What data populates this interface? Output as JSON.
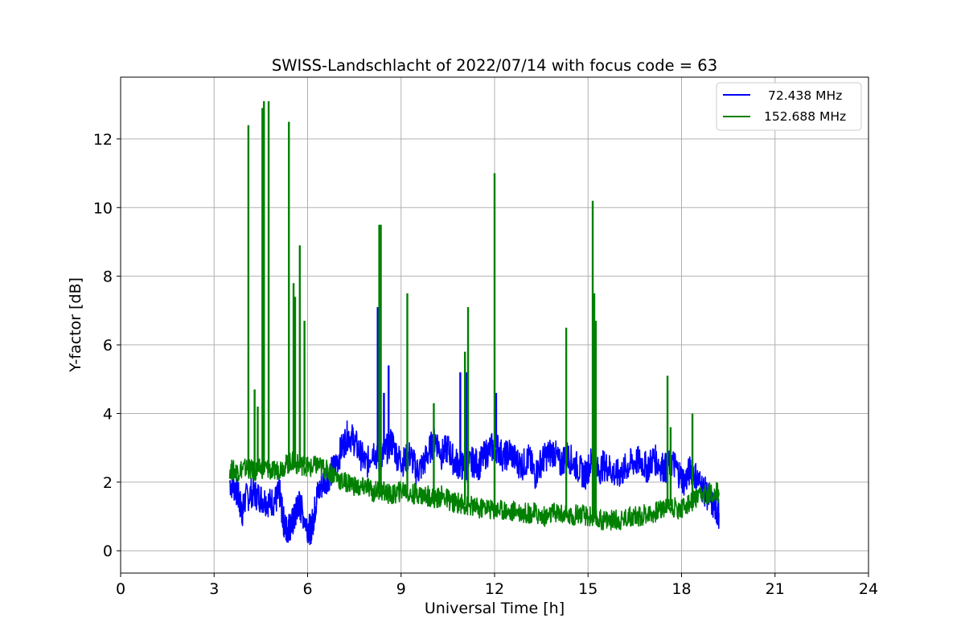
{
  "chart_data": {
    "type": "line",
    "title": "SWISS-Landschlacht of 2022/07/14 with focus code = 63",
    "xlabel": "Universal Time [h]",
    "ylabel": "Y-factor [dB]",
    "xlim": [
      0,
      24
    ],
    "ylim": [
      -0.65,
      13.8
    ],
    "xticks": [
      0,
      3,
      6,
      9,
      12,
      15,
      18,
      21,
      24
    ],
    "xtick_labels": [
      "0",
      "3",
      "6",
      "9",
      "12",
      "15",
      "18",
      "21",
      "24"
    ],
    "yticks": [
      0,
      2,
      4,
      6,
      8,
      10,
      12
    ],
    "ytick_labels": [
      "0",
      "2",
      "4",
      "6",
      "8",
      "10",
      "12"
    ],
    "grid": true,
    "legend_position": "top-right",
    "series": [
      {
        "name": "72.438 MHz",
        "color": "#0000ff",
        "x": [
          3.5,
          3.7,
          3.8,
          3.9,
          4.0,
          4.2,
          4.4,
          4.6,
          4.8,
          5.0,
          5.1,
          5.2,
          5.3,
          5.4,
          5.5,
          5.6,
          5.7,
          5.8,
          6.0,
          6.1,
          6.2,
          6.3,
          6.5,
          6.7,
          6.9,
          7.1,
          7.3,
          7.5,
          7.7,
          7.9,
          8.1,
          8.3,
          8.5,
          8.7,
          8.9,
          9.1,
          9.3,
          9.5,
          9.7,
          9.9,
          10.1,
          10.3,
          10.5,
          10.7,
          10.9,
          11.1,
          11.3,
          11.5,
          11.7,
          11.9,
          12.1,
          12.3,
          12.5,
          12.7,
          12.9,
          13.1,
          13.3,
          13.5,
          13.7,
          13.9,
          14.1,
          14.3,
          14.5,
          14.7,
          14.9,
          15.1,
          15.3,
          15.5,
          15.7,
          15.9,
          16.1,
          16.3,
          16.5,
          16.7,
          16.9,
          17.1,
          17.3,
          17.5,
          17.7,
          17.9,
          18.1,
          18.3,
          18.5,
          18.7,
          18.9,
          19.1,
          19.2
        ],
        "y": [
          2.0,
          1.8,
          1.5,
          1.1,
          1.5,
          1.7,
          1.6,
          1.5,
          1.4,
          1.5,
          1.7,
          1.0,
          0.6,
          0.7,
          0.8,
          1.0,
          1.4,
          1.2,
          0.7,
          0.6,
          1.0,
          1.6,
          2.0,
          2.2,
          2.5,
          3.0,
          3.4,
          3.2,
          2.8,
          2.5,
          3.0,
          2.6,
          2.9,
          3.2,
          2.7,
          2.6,
          2.8,
          2.3,
          2.5,
          2.9,
          3.3,
          2.8,
          3.0,
          2.6,
          2.5,
          2.4,
          2.6,
          2.5,
          2.8,
          3.0,
          3.0,
          2.7,
          2.9,
          2.6,
          2.5,
          2.7,
          2.2,
          2.6,
          2.8,
          2.9,
          2.5,
          2.8,
          2.6,
          2.4,
          2.2,
          2.6,
          2.3,
          2.5,
          2.4,
          2.2,
          2.3,
          2.5,
          2.6,
          2.6,
          2.4,
          2.7,
          2.5,
          2.4,
          2.6,
          2.3,
          2.0,
          2.4,
          2.1,
          1.8,
          1.5,
          1.2,
          1.1
        ],
        "spikes": [
          {
            "x": 8.25,
            "y": 7.1
          },
          {
            "x": 8.45,
            "y": 4.6
          },
          {
            "x": 8.6,
            "y": 5.4
          },
          {
            "x": 10.9,
            "y": 5.2
          },
          {
            "x": 11.05,
            "y": 5.1
          },
          {
            "x": 11.1,
            "y": 5.2
          },
          {
            "x": 12.05,
            "y": 4.6
          }
        ]
      },
      {
        "name": "152.688 MHz",
        "color": "#008000",
        "x": [
          3.5,
          3.7,
          3.9,
          4.1,
          4.3,
          4.5,
          4.7,
          4.9,
          5.1,
          5.3,
          5.5,
          5.7,
          5.9,
          6.1,
          6.3,
          6.5,
          6.7,
          6.9,
          7.1,
          7.3,
          7.5,
          7.7,
          7.9,
          8.1,
          8.3,
          8.5,
          8.7,
          8.9,
          9.1,
          9.3,
          9.5,
          9.7,
          9.9,
          10.1,
          10.3,
          10.5,
          10.7,
          10.9,
          11.1,
          11.3,
          11.5,
          11.7,
          11.9,
          12.1,
          12.3,
          12.5,
          12.7,
          12.9,
          13.1,
          13.3,
          13.5,
          13.7,
          13.9,
          14.1,
          14.3,
          14.5,
          14.7,
          14.9,
          15.1,
          15.3,
          15.5,
          15.7,
          15.9,
          16.1,
          16.3,
          16.5,
          16.7,
          16.9,
          17.1,
          17.3,
          17.5,
          17.7,
          17.9,
          18.1,
          18.3,
          18.5,
          18.7,
          18.9,
          19.1,
          19.2
        ],
        "y": [
          2.4,
          2.3,
          2.4,
          2.4,
          2.3,
          2.4,
          2.4,
          2.3,
          2.4,
          2.5,
          2.6,
          2.5,
          2.5,
          2.4,
          2.5,
          2.4,
          2.3,
          2.2,
          2.0,
          2.0,
          1.9,
          1.8,
          1.9,
          1.7,
          1.8,
          1.7,
          1.6,
          1.7,
          1.8,
          1.6,
          1.7,
          1.6,
          1.6,
          1.5,
          1.6,
          1.5,
          1.4,
          1.4,
          1.3,
          1.3,
          1.2,
          1.3,
          1.2,
          1.2,
          1.2,
          1.1,
          1.2,
          1.1,
          1.1,
          1.1,
          1.0,
          1.0,
          1.1,
          1.1,
          1.0,
          1.0,
          1.1,
          1.0,
          1.0,
          0.9,
          0.9,
          0.9,
          0.9,
          0.9,
          1.0,
          1.0,
          1.0,
          1.1,
          1.1,
          1.2,
          1.3,
          1.3,
          1.2,
          1.3,
          1.4,
          1.5,
          1.6,
          1.7,
          1.7,
          1.7
        ],
        "spikes": [
          {
            "x": 4.1,
            "y": 12.4
          },
          {
            "x": 4.3,
            "y": 4.7
          },
          {
            "x": 4.4,
            "y": 4.2
          },
          {
            "x": 4.55,
            "y": 12.9
          },
          {
            "x": 4.6,
            "y": 13.1
          },
          {
            "x": 4.75,
            "y": 13.1
          },
          {
            "x": 5.4,
            "y": 12.5
          },
          {
            "x": 5.55,
            "y": 7.8
          },
          {
            "x": 5.6,
            "y": 7.4
          },
          {
            "x": 5.75,
            "y": 8.9
          },
          {
            "x": 5.9,
            "y": 6.7
          },
          {
            "x": 8.3,
            "y": 9.5
          },
          {
            "x": 8.35,
            "y": 9.5
          },
          {
            "x": 9.2,
            "y": 7.5
          },
          {
            "x": 10.05,
            "y": 4.3
          },
          {
            "x": 11.05,
            "y": 5.8
          },
          {
            "x": 11.15,
            "y": 7.1
          },
          {
            "x": 12.0,
            "y": 11.0
          },
          {
            "x": 14.3,
            "y": 6.5
          },
          {
            "x": 15.15,
            "y": 10.2
          },
          {
            "x": 15.2,
            "y": 7.5
          },
          {
            "x": 15.25,
            "y": 6.7
          },
          {
            "x": 17.55,
            "y": 5.1
          },
          {
            "x": 17.65,
            "y": 3.6
          },
          {
            "x": 18.35,
            "y": 4.0
          }
        ]
      }
    ]
  }
}
